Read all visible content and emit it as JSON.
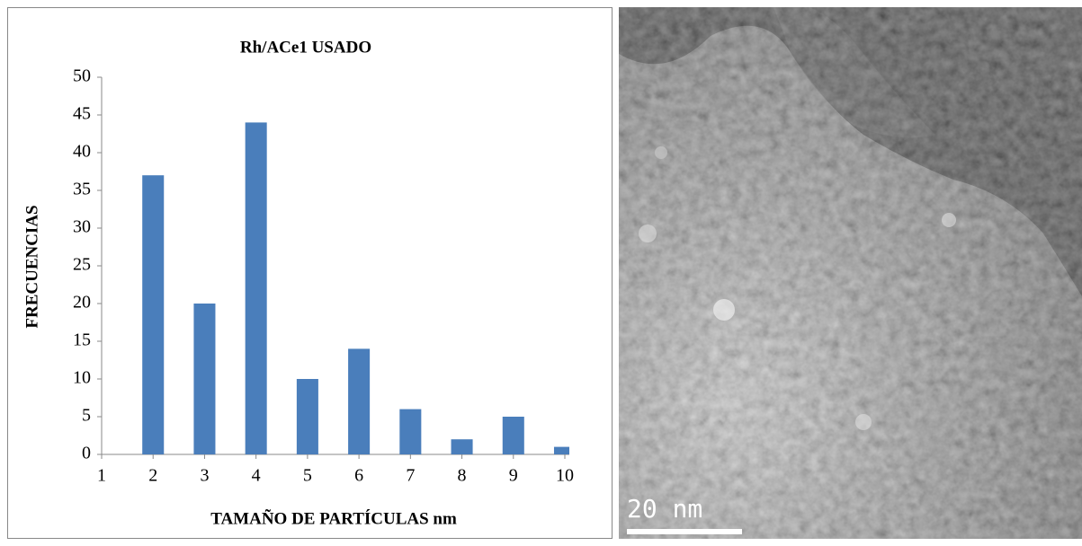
{
  "chart_data": {
    "type": "bar",
    "title": "Rh/ACe1 USADO",
    "x_label": "TAMAÑO DE PARTÍCULAS nm",
    "y_label": "FRECUENCIAS",
    "x": [
      2,
      3,
      4,
      5,
      6,
      7,
      8,
      9,
      10
    ],
    "values": [
      37,
      20,
      44,
      10,
      14,
      6,
      2,
      5,
      1
    ],
    "color": "#4a7ebb",
    "xlim": [
      1,
      10
    ],
    "xticks": [
      1,
      2,
      3,
      4,
      5,
      6,
      7,
      8,
      9,
      10
    ],
    "ylim": [
      0,
      50
    ],
    "yticks": [
      0,
      5,
      10,
      15,
      20,
      25,
      30,
      35,
      40,
      45,
      50
    ],
    "grid": false
  },
  "image": {
    "scale_label": "20 nm"
  }
}
